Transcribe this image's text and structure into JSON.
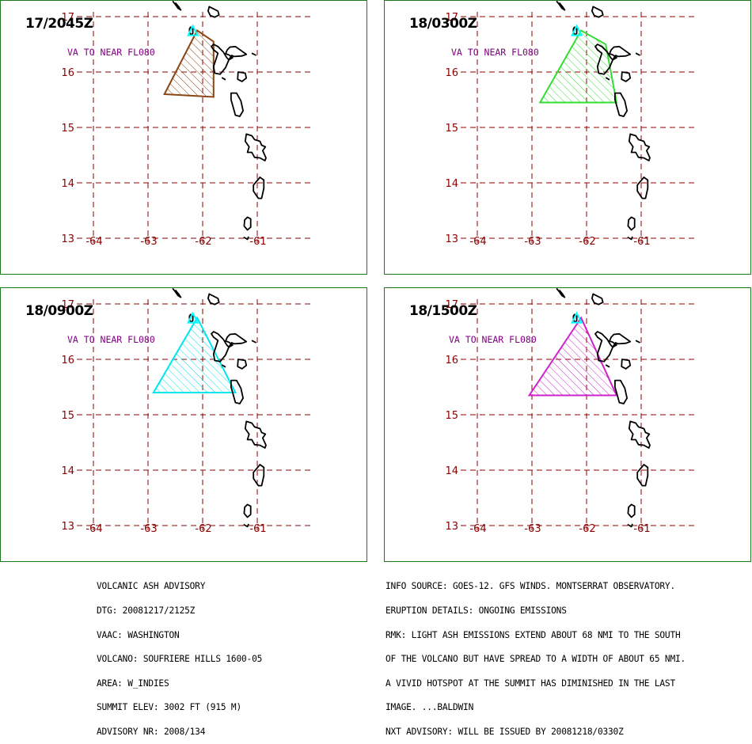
{
  "map": {
    "lat_labels": [
      "17",
      "16",
      "15",
      "14",
      "13"
    ],
    "lon_labels": [
      "-64",
      "-63",
      "-62",
      "-61"
    ],
    "grid_color": "#8b0000",
    "coast_color": "#000000",
    "volcano_marker_color": "#00ffff",
    "panel_border_color": "#1a7a1a",
    "ash_text_color": "#800080"
  },
  "panels": [
    {
      "time": "17/2045Z",
      "ash_label": "VA TO NEAR FL080",
      "color": "#8b4513",
      "polygon": [
        [
          -62.1,
          16.75
        ],
        [
          -61.8,
          16.55
        ],
        [
          -61.8,
          15.55
        ],
        [
          -62.7,
          15.6
        ]
      ]
    },
    {
      "time": "18/0300Z",
      "ash_label": "VA TO NEAR FL080",
      "color": "#33dd33",
      "polygon": [
        [
          -62.1,
          16.75
        ],
        [
          -61.65,
          16.5
        ],
        [
          -61.45,
          15.45
        ],
        [
          -62.85,
          15.45
        ]
      ]
    },
    {
      "time": "18/0900Z",
      "ash_label": "VA TO NEAR FL080",
      "color": "#00e5ee",
      "polygon": [
        [
          -62.1,
          16.75
        ],
        [
          -61.4,
          15.4
        ],
        [
          -62.9,
          15.4
        ]
      ]
    },
    {
      "time": "18/1500Z",
      "ash_label": "VA TO NEAR FL080",
      "color": "#cc22cc",
      "polygon": [
        [
          -62.1,
          16.75
        ],
        [
          -61.45,
          15.35
        ],
        [
          -63.05,
          15.35
        ]
      ]
    }
  ],
  "advisory": {
    "left_lines": [
      "VOLCANIC ASH ADVISORY",
      "DTG: 20081217/2125Z",
      "VAAC: WASHINGTON",
      "VOLCANO: SOUFRIERE HILLS 1600-05",
      "AREA: W_INDIES",
      "SUMMIT ELEV: 3002 FT (915 M)",
      "ADVISORY NR: 2008/134"
    ],
    "right_lines": [
      "INFO SOURCE: GOES-12. GFS WINDS. MONTSERRAT OBSERVATORY.",
      "ERUPTION DETAILS: ONGOING EMISSIONS",
      "RMK: LIGHT ASH EMISSIONS EXTEND ABOUT 68 NMI TO THE SOUTH",
      "OF THE VOLCANO BUT HAVE SPREAD TO A WIDTH OF ABOUT 65 NMI.",
      "A VIVID HOTSPOT AT THE SUMMIT HAS DIMINISHED IN THE LAST",
      "IMAGE. ...BALDWIN",
      "NXT ADVISORY: WILL BE ISSUED BY 20081218/0330Z"
    ]
  }
}
